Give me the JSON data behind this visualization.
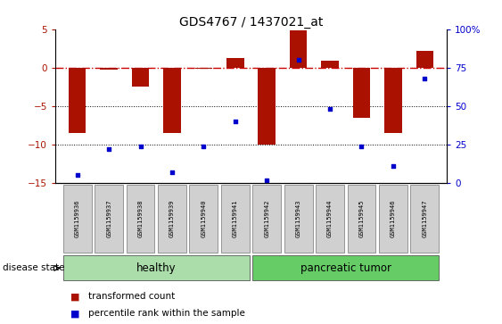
{
  "title": "GDS4767 / 1437021_at",
  "samples": [
    "GSM1159936",
    "GSM1159937",
    "GSM1159938",
    "GSM1159939",
    "GSM1159940",
    "GSM1159941",
    "GSM1159942",
    "GSM1159943",
    "GSM1159944",
    "GSM1159945",
    "GSM1159946",
    "GSM1159947"
  ],
  "transformed_count": [
    -8.5,
    -0.3,
    -2.5,
    -8.5,
    -0.1,
    1.2,
    -10.0,
    4.8,
    0.9,
    -6.5,
    -8.5,
    2.2
  ],
  "percentile_rank": [
    5,
    22,
    24,
    7,
    24,
    40,
    2,
    80,
    48,
    24,
    11,
    68
  ],
  "ylim_left": [
    -15,
    5
  ],
  "ylim_right": [
    0,
    100
  ],
  "bar_color": "#aa1100",
  "dot_color": "#0000cc",
  "hline_color": "#cc0000",
  "background_color": "#ffffff",
  "healthy_color": "#aaddaa",
  "tumor_color": "#66cc66",
  "healthy_indices": [
    0,
    1,
    2,
    3,
    4,
    5
  ],
  "tumor_indices": [
    6,
    7,
    8,
    9,
    10,
    11
  ],
  "healthy_label": "healthy",
  "tumor_label": "pancreatic tumor",
  "disease_state_label": "disease state",
  "legend_bar_label": "transformed count",
  "legend_dot_label": "percentile rank within the sample",
  "yticks_left": [
    -15,
    -10,
    -5,
    0,
    5
  ],
  "yticks_right": [
    0,
    25,
    50,
    75,
    100
  ],
  "bar_width": 0.55
}
